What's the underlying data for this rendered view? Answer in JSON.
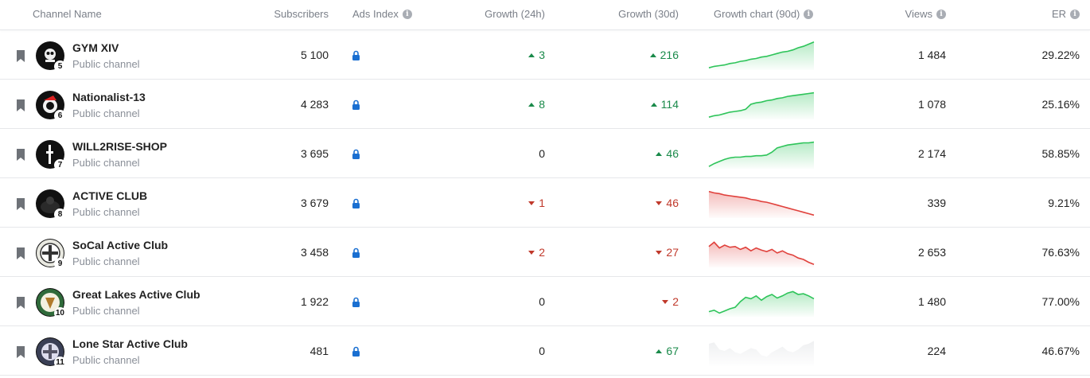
{
  "header": {
    "channel_name": "Channel Name",
    "subscribers": "Subscribers",
    "ads_index": "Ads Index",
    "growth_24h": "Growth (24h)",
    "growth_30d": "Growth (30d)",
    "growth_chart": "Growth chart (90d)",
    "views": "Views",
    "er": "ER"
  },
  "colors": {
    "up": "#1a8a4a",
    "down": "#c0392b",
    "lock": "#1a6fd1",
    "spark_up": "#2ec45a",
    "spark_down": "#e0413c"
  },
  "rows": [
    {
      "rank": "5",
      "name": "GYM XIV",
      "type": "Public channel",
      "subscribers": "5 100",
      "growth_24h": "3",
      "dir_24h": "up",
      "growth_30d": "216",
      "dir_30d": "up",
      "trend": "up",
      "views": "1 484",
      "er": "29.22%",
      "spark": [
        2,
        4,
        5,
        6,
        8,
        9,
        11,
        12,
        14,
        15,
        17,
        18,
        20,
        22,
        24,
        25,
        27,
        30,
        32,
        35,
        38
      ]
    },
    {
      "rank": "6",
      "name": "Nationalist-13",
      "type": "Public channel",
      "subscribers": "4 283",
      "growth_24h": "8",
      "dir_24h": "up",
      "growth_30d": "114",
      "dir_30d": "up",
      "trend": "up",
      "views": "1 078",
      "er": "25.16%",
      "spark": [
        2,
        4,
        5,
        7,
        9,
        10,
        11,
        13,
        20,
        22,
        23,
        25,
        26,
        28,
        29,
        31,
        32,
        33,
        34,
        35,
        36
      ]
    },
    {
      "rank": "7",
      "name": "WILL2RISE-SHOP",
      "type": "Public channel",
      "subscribers": "3 695",
      "growth_24h": "0",
      "dir_24h": "zero",
      "growth_30d": "46",
      "dir_30d": "up",
      "trend": "up",
      "views": "2 174",
      "er": "58.85%",
      "spark": [
        2,
        6,
        9,
        12,
        14,
        15,
        15,
        16,
        16,
        17,
        17,
        18,
        22,
        28,
        30,
        32,
        33,
        34,
        35,
        35,
        36
      ]
    },
    {
      "rank": "8",
      "name": "ACTIVE CLUB",
      "type": "Public channel",
      "subscribers": "3 679",
      "growth_24h": "1",
      "dir_24h": "down",
      "growth_30d": "46",
      "dir_30d": "down",
      "trend": "down",
      "views": "339",
      "er": "9.21%",
      "spark": [
        36,
        34,
        33,
        31,
        30,
        29,
        28,
        27,
        25,
        24,
        22,
        21,
        19,
        17,
        15,
        13,
        11,
        9,
        7,
        5,
        3
      ]
    },
    {
      "rank": "9",
      "name": "SoCal Active Club",
      "type": "Public channel",
      "subscribers": "3 458",
      "growth_24h": "2",
      "dir_24h": "down",
      "growth_30d": "27",
      "dir_30d": "down",
      "trend": "down",
      "views": "2 653",
      "er": "76.63%",
      "spark": [
        28,
        34,
        26,
        30,
        27,
        28,
        24,
        27,
        22,
        26,
        23,
        21,
        24,
        19,
        22,
        18,
        16,
        12,
        10,
        6,
        3
      ]
    },
    {
      "rank": "10",
      "name": "Great Lakes Active Club",
      "type": "Public channel",
      "subscribers": "1 922",
      "growth_24h": "0",
      "dir_24h": "zero",
      "growth_30d": "2",
      "dir_30d": "down",
      "trend": "up",
      "views": "1 480",
      "er": "77.00%",
      "spark": [
        6,
        8,
        4,
        7,
        10,
        12,
        20,
        26,
        24,
        28,
        22,
        27,
        30,
        25,
        28,
        32,
        34,
        30,
        31,
        28,
        24
      ]
    },
    {
      "rank": "11",
      "name": "Lone Star Active Club",
      "type": "Public channel",
      "subscribers": "481",
      "growth_24h": "0",
      "dir_24h": "zero",
      "growth_30d": "67",
      "dir_30d": "up",
      "trend": "faded",
      "views": "224",
      "er": "46.67%",
      "spark": [
        30,
        32,
        22,
        20,
        24,
        18,
        16,
        20,
        24,
        22,
        14,
        12,
        18,
        22,
        26,
        20,
        18,
        22,
        28,
        30,
        34
      ]
    }
  ]
}
